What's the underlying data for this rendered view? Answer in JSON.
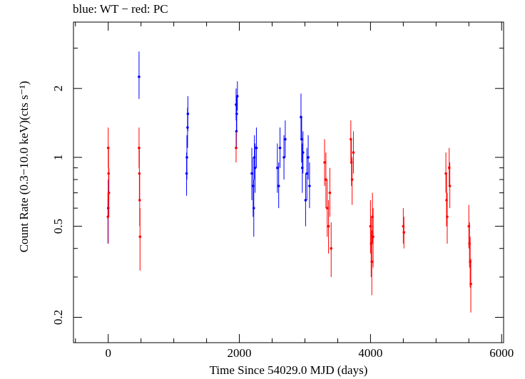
{
  "title": "blue: WT − red: PC",
  "chart_data": {
    "type": "scatter",
    "title": "blue: WT − red: PC",
    "xlabel": "Time Since 54029.0 MJD (days)",
    "ylabel": "Count Rate (0.3−10.0 keV)(cts s⁻¹)",
    "xlim": [
      -530,
      6030
    ],
    "ylim": [
      0.155,
      3.9
    ],
    "yscale": "log",
    "x_ticks": [
      "0",
      "2000",
      "4000",
      "6000"
    ],
    "y_ticks": [
      "0.2",
      "0.5",
      "1",
      "2"
    ],
    "grid": false,
    "colors": {
      "WT": "#0000ff",
      "PC": "#ff0000"
    },
    "series": [
      {
        "name": "WT",
        "color": "#0000ff",
        "points": [
          [
            0,
            0.6,
            0.42,
            0.8
          ],
          [
            470,
            2.25,
            1.8,
            2.9
          ],
          [
            1200,
            1.0,
            0.8,
            1.25
          ],
          [
            1210,
            1.35,
            1.1,
            1.65
          ],
          [
            1215,
            1.55,
            1.3,
            1.85
          ],
          [
            1195,
            0.85,
            0.68,
            1.05
          ],
          [
            1950,
            1.7,
            1.45,
            2.0
          ],
          [
            1960,
            1.55,
            1.3,
            1.85
          ],
          [
            1970,
            1.85,
            1.6,
            2.15
          ],
          [
            1955,
            1.3,
            1.1,
            1.5
          ],
          [
            2190,
            0.85,
            0.65,
            1.1
          ],
          [
            2210,
            0.75,
            0.55,
            1.0
          ],
          [
            2220,
            0.6,
            0.45,
            0.8
          ],
          [
            2230,
            1.0,
            0.8,
            1.25
          ],
          [
            2240,
            0.9,
            0.7,
            1.15
          ],
          [
            2260,
            1.1,
            0.9,
            1.35
          ],
          [
            2580,
            0.9,
            0.7,
            1.15
          ],
          [
            2600,
            0.75,
            0.6,
            0.95
          ],
          [
            2620,
            1.1,
            0.9,
            1.35
          ],
          [
            2680,
            1.0,
            0.8,
            1.25
          ],
          [
            2700,
            1.2,
            1.0,
            1.45
          ],
          [
            2940,
            1.5,
            1.2,
            1.9
          ],
          [
            2950,
            1.2,
            0.95,
            1.5
          ],
          [
            2960,
            0.9,
            0.7,
            1.15
          ],
          [
            2970,
            1.05,
            0.85,
            1.3
          ],
          [
            3010,
            0.65,
            0.5,
            0.85
          ],
          [
            3030,
            0.85,
            0.65,
            1.1
          ],
          [
            3050,
            1.0,
            0.8,
            1.25
          ],
          [
            3070,
            0.75,
            0.6,
            0.95
          ]
        ]
      },
      {
        "name": "PC",
        "color": "#ff0000",
        "points": [
          [
            0,
            1.1,
            0.9,
            1.35
          ],
          [
            5,
            0.85,
            0.65,
            1.1
          ],
          [
            10,
            0.7,
            0.55,
            0.9
          ],
          [
            -5,
            0.55,
            0.42,
            0.7
          ],
          [
            470,
            1.1,
            0.9,
            1.35
          ],
          [
            475,
            0.85,
            0.65,
            1.1
          ],
          [
            480,
            0.65,
            0.5,
            0.85
          ],
          [
            485,
            0.45,
            0.32,
            0.6
          ],
          [
            1950,
            1.1,
            0.95,
            1.3
          ],
          [
            3300,
            0.95,
            0.75,
            1.2
          ],
          [
            3320,
            0.8,
            0.6,
            1.05
          ],
          [
            3340,
            0.6,
            0.45,
            0.8
          ],
          [
            3360,
            0.5,
            0.38,
            0.65
          ],
          [
            3380,
            0.7,
            0.55,
            0.9
          ],
          [
            3400,
            0.4,
            0.3,
            0.52
          ],
          [
            3700,
            1.2,
            0.95,
            1.45
          ],
          [
            3710,
            0.95,
            0.75,
            1.2
          ],
          [
            3720,
            0.8,
            0.62,
            1.0
          ],
          [
            3740,
            1.05,
            0.85,
            1.3
          ],
          [
            4000,
            0.5,
            0.38,
            0.65
          ],
          [
            4010,
            0.42,
            0.3,
            0.55
          ],
          [
            4020,
            0.35,
            0.25,
            0.48
          ],
          [
            4030,
            0.55,
            0.42,
            0.7
          ],
          [
            4040,
            0.45,
            0.33,
            0.6
          ],
          [
            4500,
            0.5,
            0.42,
            0.6
          ],
          [
            4510,
            0.47,
            0.4,
            0.55
          ],
          [
            5150,
            0.85,
            0.7,
            1.05
          ],
          [
            5160,
            0.65,
            0.5,
            0.85
          ],
          [
            5170,
            0.55,
            0.42,
            0.7
          ],
          [
            5200,
            0.9,
            0.75,
            1.1
          ],
          [
            5210,
            0.75,
            0.6,
            0.95
          ],
          [
            5500,
            0.5,
            0.4,
            0.62
          ],
          [
            5510,
            0.42,
            0.33,
            0.52
          ],
          [
            5520,
            0.35,
            0.27,
            0.45
          ],
          [
            5530,
            0.28,
            0.21,
            0.36
          ]
        ]
      }
    ]
  }
}
